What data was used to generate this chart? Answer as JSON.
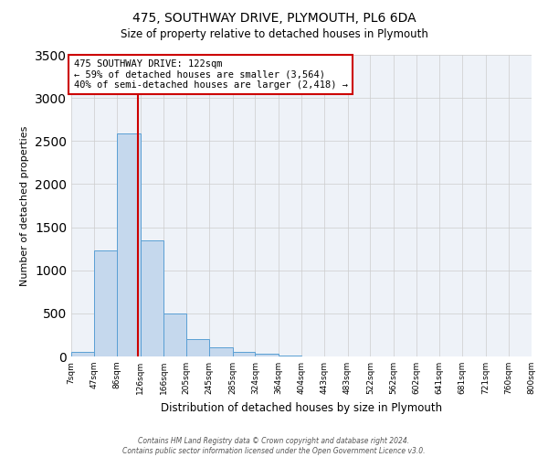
{
  "title": "475, SOUTHWAY DRIVE, PLYMOUTH, PL6 6DA",
  "subtitle": "Size of property relative to detached houses in Plymouth",
  "xlabel": "Distribution of detached houses by size in Plymouth",
  "ylabel": "Number of detached properties",
  "bar_color": "#c5d8ed",
  "bar_edge_color": "#5a9fd4",
  "grid_color": "#cccccc",
  "background_color": "#ffffff",
  "plot_bg_color": "#eef2f8",
  "annotation_line_color": "#cc0000",
  "annotation_box_edge": "#cc0000",
  "bin_edges": [
    7,
    47,
    86,
    126,
    166,
    205,
    245,
    285,
    324,
    364,
    404,
    443,
    483,
    522,
    562,
    602,
    641,
    681,
    721,
    760,
    800
  ],
  "counts": [
    50,
    1230,
    2590,
    1350,
    500,
    200,
    110,
    50,
    30,
    10,
    5,
    2,
    1,
    0,
    0,
    0,
    0,
    0,
    0,
    0
  ],
  "property_size": 122,
  "annotation_text_line1": "475 SOUTHWAY DRIVE: 122sqm",
  "annotation_text_line2": "← 59% of detached houses are smaller (3,564)",
  "annotation_text_line3": "40% of semi-detached houses are larger (2,418) →",
  "ylim": [
    0,
    3500
  ],
  "yticks": [
    0,
    500,
    1000,
    1500,
    2000,
    2500,
    3000,
    3500
  ],
  "tick_labels": [
    "7sqm",
    "47sqm",
    "86sqm",
    "126sqm",
    "166sqm",
    "205sqm",
    "245sqm",
    "285sqm",
    "324sqm",
    "364sqm",
    "404sqm",
    "443sqm",
    "483sqm",
    "522sqm",
    "562sqm",
    "602sqm",
    "641sqm",
    "681sqm",
    "721sqm",
    "760sqm",
    "800sqm"
  ],
  "footer_line1": "Contains HM Land Registry data © Crown copyright and database right 2024.",
  "footer_line2": "Contains public sector information licensed under the Open Government Licence v3.0."
}
